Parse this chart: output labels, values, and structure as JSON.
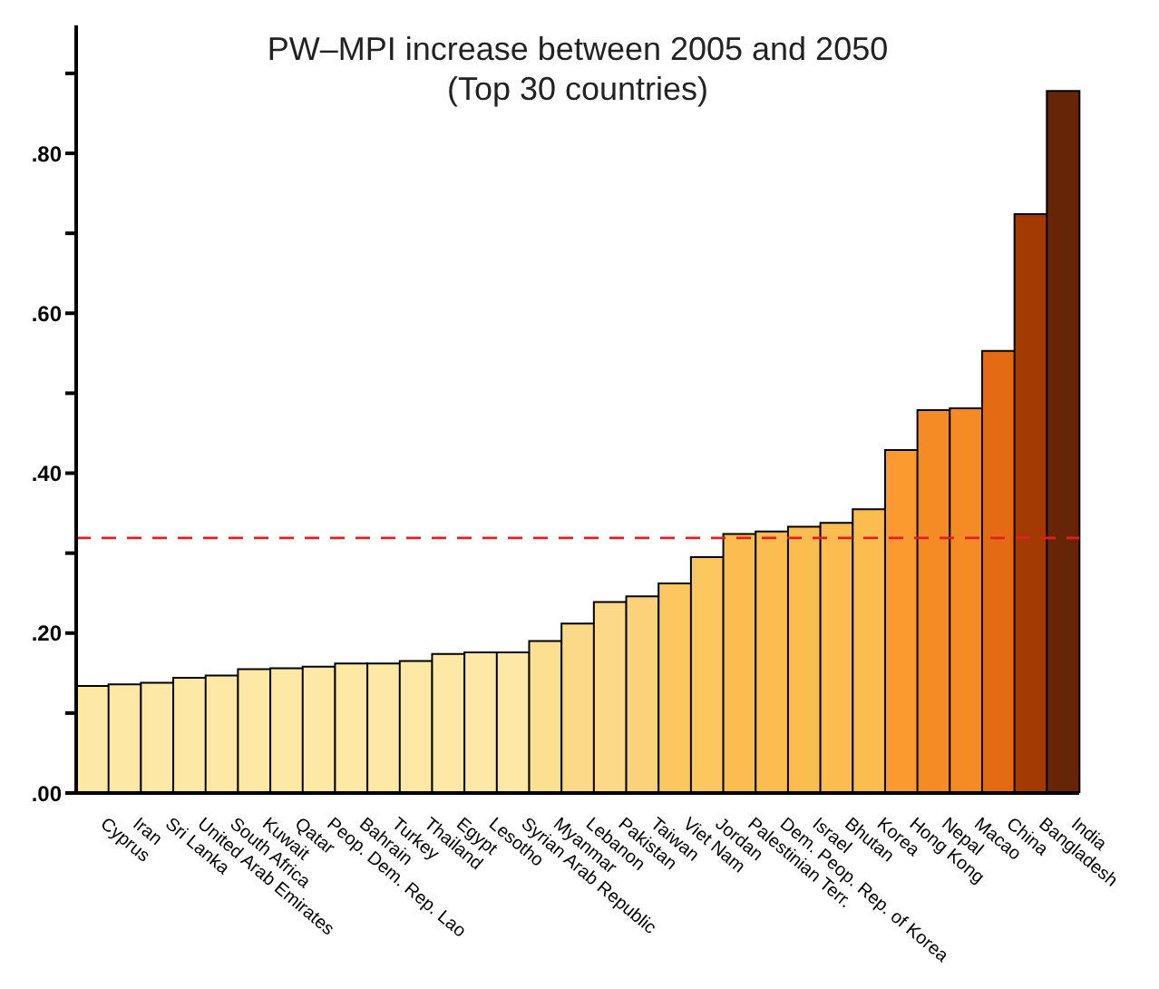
{
  "chart_data": {
    "type": "bar",
    "title": "PW–MPI increase between 2005 and 2050",
    "subtitle": "(Top 30 countries)",
    "categories": [
      "Cyprus",
      "Iran",
      "Sri Lanka",
      "United Arab Emirates",
      "South Africa",
      "Kuwait",
      "Qatar",
      "Peop. Dem. Rep. Lao",
      "Bahrain",
      "Turkey",
      "Thailand",
      "Egypt",
      "Lesotho",
      "Syrian Arab Republic",
      "Myanmar",
      "Lebanon",
      "Pakistan",
      "Taiwan",
      "Viet Nam",
      "Jordan",
      "Palestinian Terr.",
      "Dem. Peop. Rep. of Korea",
      "Israel",
      "Bhutan",
      "Korea",
      "Hong Kong",
      "Nepal",
      "Macao",
      "China",
      "Bangladesh",
      "India"
    ],
    "values": [
      0.134,
      0.136,
      0.138,
      0.144,
      0.147,
      0.155,
      0.156,
      0.158,
      0.162,
      0.162,
      0.165,
      0.174,
      0.176,
      0.176,
      0.19,
      0.212,
      0.239,
      0.246,
      0.262,
      0.295,
      0.324,
      0.327,
      0.333,
      0.338,
      0.355,
      0.429,
      0.479,
      0.481,
      0.553,
      0.724,
      0.878
    ],
    "colors": [
      "#fde9a5",
      "#fde9a5",
      "#fde9a5",
      "#fde9a5",
      "#fde9a5",
      "#fde9a5",
      "#fde9a5",
      "#fde9a5",
      "#fde9a5",
      "#fde9a5",
      "#fde9a5",
      "#fde9a5",
      "#fde9a5",
      "#fde9a5",
      "#fbe090",
      "#fcd989",
      "#fcd989",
      "#fbd27a",
      "#fbc75e",
      "#fbc75e",
      "#fbbd4f",
      "#fbbd4f",
      "#fbbd4f",
      "#fbbd4f",
      "#fbbd4f",
      "#fb9a2e",
      "#f48b24",
      "#f48b24",
      "#e46a14",
      "#a33a04",
      "#662506"
    ],
    "ylim": [
      0,
      0.96
    ],
    "yticks": [
      {
        "value": 0,
        "label": ".00"
      },
      {
        "value": 0.1,
        "label": null
      },
      {
        "value": 0.2,
        "label": ".20"
      },
      {
        "value": 0.3,
        "label": null
      },
      {
        "value": 0.4,
        "label": ".40"
      },
      {
        "value": 0.5,
        "label": null
      },
      {
        "value": 0.6,
        "label": ".60"
      },
      {
        "value": 0.7,
        "label": null
      },
      {
        "value": 0.8,
        "label": ".80"
      },
      {
        "value": 0.9,
        "label": null
      }
    ],
    "ref_lines": [
      {
        "axis": "y",
        "value": 0.319,
        "color": "#e02020",
        "line_style": "dashed"
      }
    ],
    "grid": false,
    "legend": false
  }
}
